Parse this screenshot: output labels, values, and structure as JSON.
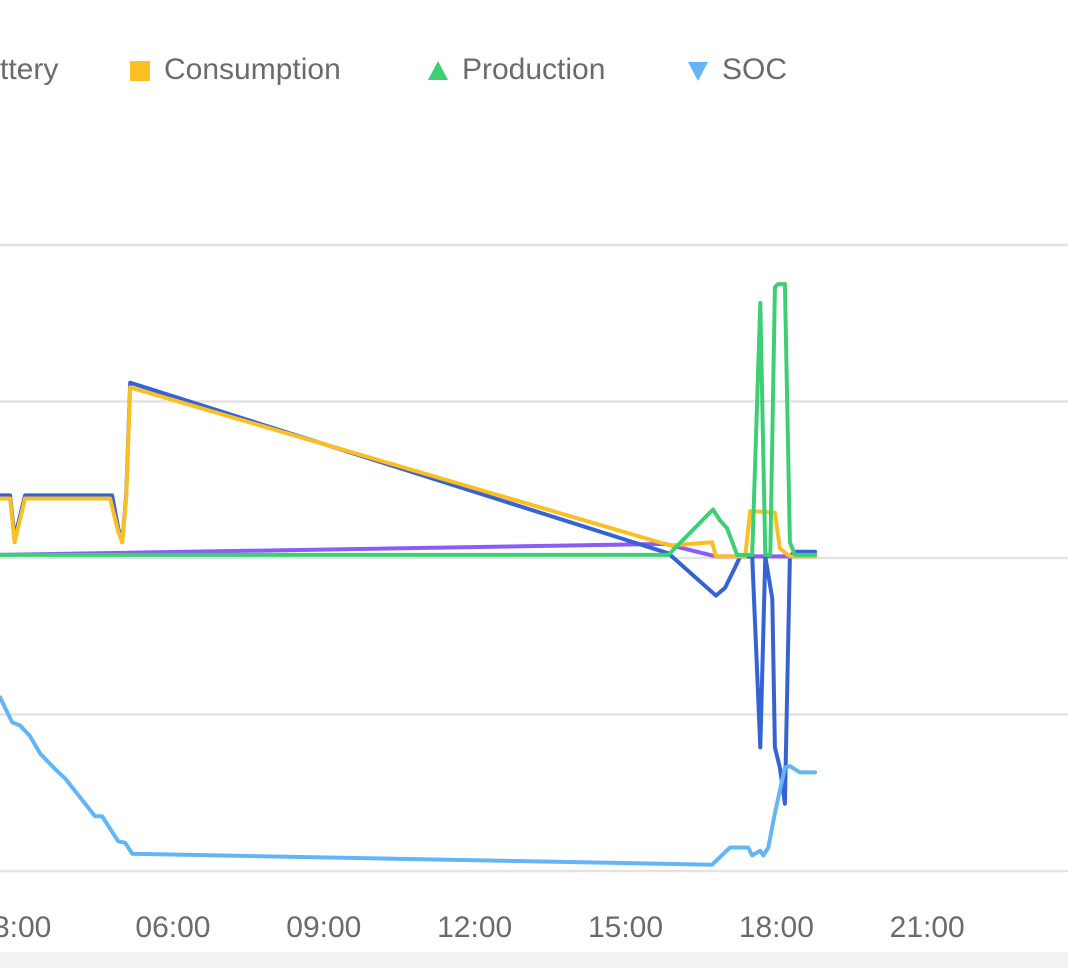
{
  "chart_data": {
    "type": "line",
    "xlim": [
      2.56,
      23.8
    ],
    "xticks": [
      {
        "value": 3,
        "label": "3:00"
      },
      {
        "value": 6,
        "label": "06:00"
      },
      {
        "value": 9,
        "label": "09:00"
      },
      {
        "value": 12,
        "label": "12:00"
      },
      {
        "value": 15,
        "label": "15:00"
      },
      {
        "value": 18,
        "label": "18:00"
      },
      {
        "value": 21,
        "label": "21:00"
      }
    ],
    "ylim": [
      -2,
      2
    ],
    "yticks": [
      -2,
      -1,
      0,
      1,
      2
    ],
    "grid": true,
    "series": [
      {
        "color": "#8b5cf6",
        "x": [
          2.56,
          15.79,
          16.8,
          18.77
        ],
        "values": [
          0.02,
          0.09,
          0.01,
          0.01
        ]
      },
      {
        "name": "ttery",
        "color": "#3563d4",
        "x": [
          2.56,
          2.76,
          2.85,
          3.06,
          4.79,
          4.91,
          4.99,
          5.07,
          5.15,
          15.85,
          16.8,
          16.98,
          17.18,
          17.28,
          17.52,
          17.68,
          17.78,
          17.92,
          17.97,
          18.07,
          18.17,
          18.27,
          18.37,
          18.77
        ],
        "values": [
          0.4,
          0.4,
          0.13,
          0.4,
          0.4,
          0.19,
          0.1,
          0.4,
          1.12,
          0.03,
          -0.24,
          -0.19,
          -0.06,
          0.01,
          0.01,
          -1.21,
          0.01,
          -0.26,
          -1.21,
          -1.34,
          -1.57,
          0.01,
          0.04,
          0.04
        ]
      },
      {
        "name": "Consumption",
        "color": "#fbbf24",
        "marker": "square",
        "x": [
          2.56,
          2.76,
          2.85,
          3.06,
          4.75,
          4.91,
          4.99,
          5.07,
          5.15,
          15.89,
          16.72,
          16.8,
          17.38,
          17.48,
          17.97,
          18.07,
          18.27,
          18.77
        ],
        "values": [
          0.38,
          0.38,
          0.1,
          0.38,
          0.38,
          0.17,
          0.1,
          0.38,
          1.09,
          0.08,
          0.1,
          0.01,
          0.01,
          0.3,
          0.29,
          0.06,
          0.01,
          0.01
        ]
      },
      {
        "name": "Production",
        "color": "#3ecf74",
        "marker": "triangle",
        "x": [
          2.56,
          15.85,
          16.74,
          16.88,
          17.02,
          17.22,
          17.52,
          17.68,
          17.78,
          17.88,
          17.97,
          18.03,
          18.17,
          18.27,
          18.37,
          18.77
        ],
        "values": [
          0.02,
          0.02,
          0.31,
          0.24,
          0.19,
          0.02,
          0.02,
          1.63,
          0.02,
          0.02,
          1.73,
          1.75,
          1.75,
          0.1,
          0.02,
          0.02
        ]
      },
      {
        "name": "SOC",
        "color": "#64b5f6",
        "marker": "triangle-down",
        "x": [
          2.56,
          2.8,
          2.96,
          3.16,
          3.36,
          3.66,
          3.86,
          4.45,
          4.59,
          4.91,
          5.05,
          5.19,
          16.72,
          16.98,
          17.08,
          17.44,
          17.52,
          17.68,
          17.74,
          17.84,
          17.97,
          18.17,
          18.27,
          18.47,
          18.77
        ],
        "values": [
          -0.89,
          -1.05,
          -1.07,
          -1.14,
          -1.25,
          -1.35,
          -1.41,
          -1.65,
          -1.65,
          -1.81,
          -1.82,
          -1.89,
          -1.96,
          -1.88,
          -1.85,
          -1.85,
          -1.9,
          -1.87,
          -1.9,
          -1.85,
          -1.63,
          -1.34,
          -1.33,
          -1.37,
          -1.37
        ]
      }
    ]
  }
}
